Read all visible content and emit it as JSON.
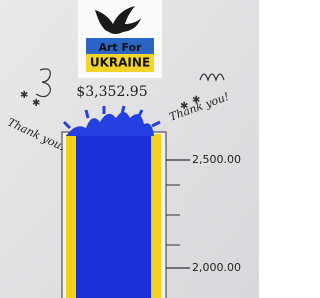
{
  "sign": {
    "line1": "Art For",
    "line2": "UKRAINE"
  },
  "amount": "$3,352.95",
  "thanks_left": "Thank you!",
  "thanks_right": "Thank you!",
  "scale_labels": [
    "2,500.00",
    "2,000.00"
  ]
}
